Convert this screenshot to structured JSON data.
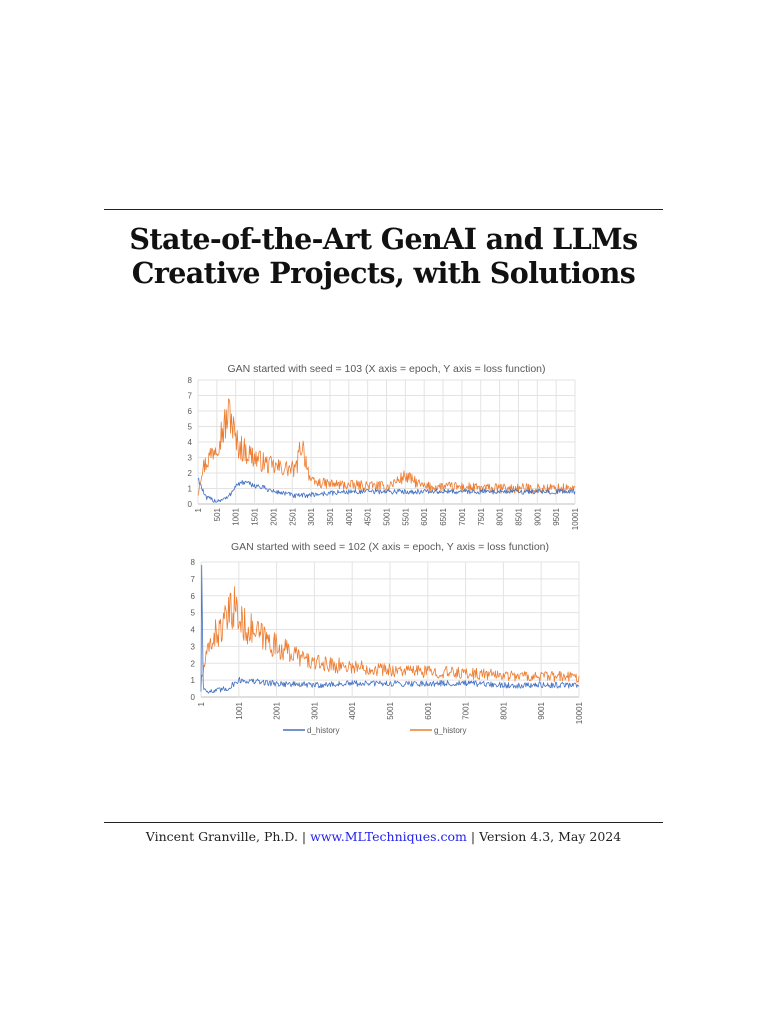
{
  "document": {
    "title_lines": [
      "State-of-the-Art GenAI and LLMs",
      "Creative Projects, with Solutions"
    ],
    "footer": {
      "author": "Vincent Granville, Ph.D.",
      "separator": "|",
      "link_text": "www.MLTechniques.com",
      "version": "Version 4.3, May 2024"
    }
  },
  "chart_data": [
    {
      "type": "line",
      "title": "GAN started with seed = 103 (X axis = epoch, Y axis = loss function)",
      "xlabel": "",
      "ylabel": "",
      "xlim": [
        1,
        10001
      ],
      "ylim": [
        0,
        8
      ],
      "yticks": [
        0,
        1,
        2,
        3,
        4,
        5,
        6,
        7,
        8
      ],
      "xticks": [
        "1",
        "501",
        "1001",
        "1501",
        "2001",
        "2501",
        "3001",
        "3501",
        "4001",
        "4501",
        "5001",
        "5501",
        "6001",
        "6501",
        "7001",
        "7501",
        "8001",
        "8501",
        "9001",
        "9501",
        "10001"
      ],
      "grid": true,
      "colors": {
        "d_history": "#4472c4",
        "g_history": "#ed7d31"
      },
      "series": [
        {
          "name": "d_history",
          "x": [
            1,
            200,
            500,
            800,
            1001,
            1200,
            1500,
            1800,
            2001,
            2300,
            2600,
            3001,
            3500,
            4001,
            4500,
            5001,
            5500,
            6001,
            6500,
            7001,
            7500,
            8001,
            8500,
            9001,
            9500,
            10001
          ],
          "y": [
            1.7,
            0.4,
            0.2,
            0.4,
            1.2,
            1.4,
            1.2,
            1.0,
            0.8,
            0.7,
            0.5,
            0.6,
            0.7,
            0.8,
            0.8,
            0.8,
            0.8,
            0.8,
            0.8,
            0.8,
            0.8,
            0.8,
            0.8,
            0.8,
            0.8,
            0.8
          ]
        },
        {
          "name": "g_history",
          "x": [
            1,
            100,
            300,
            500,
            700,
            850,
            1001,
            1200,
            1500,
            1800,
            2001,
            2300,
            2600,
            2750,
            3001,
            3500,
            4001,
            4500,
            5001,
            5500,
            6001,
            6500,
            7001,
            7500,
            8001,
            8500,
            9001,
            9500,
            10001
          ],
          "y": [
            0.7,
            2.2,
            3.0,
            4.0,
            5.0,
            6.0,
            4.0,
            3.5,
            3.0,
            2.6,
            2.4,
            2.3,
            2.2,
            4.0,
            1.4,
            1.3,
            1.2,
            1.2,
            1.1,
            1.8,
            1.1,
            1.1,
            1.1,
            1.0,
            1.0,
            1.0,
            1.0,
            1.0,
            1.0
          ]
        }
      ]
    },
    {
      "type": "line",
      "title": "GAN started with seed = 102 (X axis = epoch, Y axis = loss function)",
      "xlabel": "",
      "ylabel": "",
      "xlim": [
        1,
        10001
      ],
      "ylim": [
        0,
        8
      ],
      "yticks": [
        0,
        1,
        2,
        3,
        4,
        5,
        6,
        7,
        8
      ],
      "xticks": [
        "1",
        "1001",
        "2001",
        "3001",
        "4001",
        "5001",
        "6001",
        "7001",
        "8001",
        "9001",
        "10001"
      ],
      "grid": true,
      "legend": {
        "position": "bottom",
        "entries": [
          "d_history",
          "g_history"
        ]
      },
      "colors": {
        "d_history": "#4472c4",
        "g_history": "#ed7d31"
      },
      "series": [
        {
          "name": "d_history",
          "x": [
            1,
            20,
            60,
            300,
            700,
            1001,
            1500,
            2001,
            3001,
            4001,
            5001,
            6001,
            7001,
            8001,
            9001,
            10001
          ],
          "y": [
            0.4,
            7.8,
            0.5,
            0.3,
            0.5,
            1.0,
            0.9,
            0.8,
            0.7,
            0.8,
            0.8,
            0.8,
            0.8,
            0.7,
            0.7,
            0.7
          ]
        },
        {
          "name": "g_history",
          "x": [
            1,
            100,
            300,
            600,
            900,
            1001,
            1300,
            1600,
            2001,
            2500,
            3001,
            4001,
            5001,
            6001,
            7001,
            8001,
            9001,
            10001
          ],
          "y": [
            0.8,
            2.0,
            3.5,
            4.2,
            5.5,
            4.5,
            4.0,
            3.6,
            3.0,
            2.5,
            2.0,
            1.8,
            1.6,
            1.5,
            1.4,
            1.3,
            1.2,
            1.2
          ]
        }
      ]
    }
  ]
}
